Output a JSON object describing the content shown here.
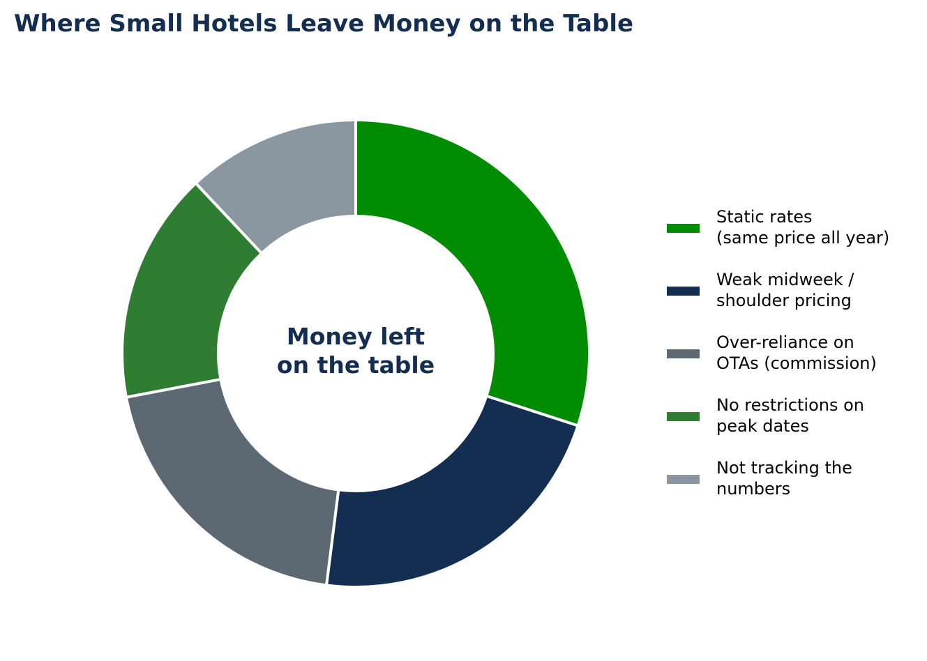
{
  "chart_data": {
    "type": "pie",
    "variant": "donut",
    "title": "Where Small Hotels Leave Money on the Table",
    "center_label": [
      "Money left",
      "on the table"
    ],
    "categories": [
      [
        "Static rates",
        "(same price all year)"
      ],
      [
        "Weak midweek /",
        "shoulder pricing"
      ],
      [
        "Over-reliance on",
        "OTAs (commission)"
      ],
      [
        "No restrictions on",
        "peak dates"
      ],
      [
        "Not tracking the",
        "numbers"
      ]
    ],
    "values": [
      30,
      22,
      20,
      16,
      12
    ],
    "colors": [
      "#008c00",
      "#132e51",
      "#5c6973",
      "#2e7d32",
      "#8a96a0"
    ],
    "start_angle": "12 o'clock",
    "direction": "clockwise",
    "legend_position": "right"
  }
}
